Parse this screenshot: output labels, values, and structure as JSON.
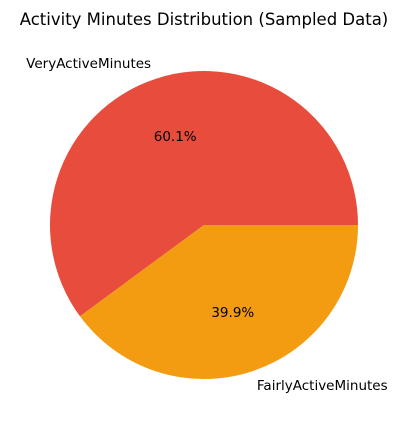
{
  "chart_data": {
    "type": "pie",
    "title": "Activity Minutes Distribution (Sampled Data)",
    "slices": [
      {
        "label": "VeryActiveMinutes",
        "value": 60.1,
        "pct_label": "60.1%",
        "color": "#e74c3c"
      },
      {
        "label": "FairlyActiveMinutes",
        "value": 39.9,
        "pct_label": "39.9%",
        "color": "#f39c12"
      }
    ],
    "start_angle_deg": 0,
    "direction": "counterclockwise"
  }
}
